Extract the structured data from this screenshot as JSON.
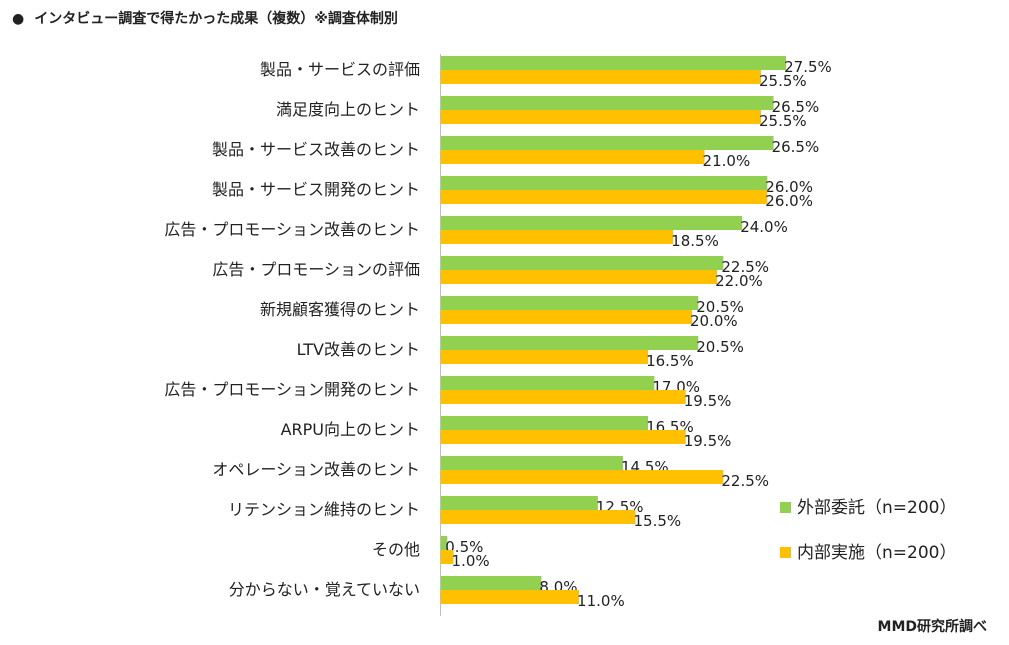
{
  "title": {
    "bullet": "●",
    "text": "インタビュー調査で得たかった成果（複数）※調査体制別"
  },
  "source": "MMD研究所調べ",
  "legend": [
    {
      "name": "外部委託（n=200）",
      "color": "#92d050"
    },
    {
      "name": "内部実施（n=200）",
      "color": "#ffc000"
    }
  ],
  "chart_data": {
    "type": "bar",
    "orientation": "horizontal",
    "categories": [
      "製品・サービスの評価",
      "満足度向上のヒント",
      "製品・サービス改善のヒント",
      "製品・サービス開発のヒント",
      "広告・プロモーション改善のヒント",
      "広告・プロモーションの評価",
      "新規顧客獲得のヒント",
      "LTV改善のヒント",
      "広告・プロモーション開発のヒント",
      "ARPU向上のヒント",
      "オペレーション改善のヒント",
      "リテンション維持のヒント",
      "その他",
      "分からない・覚えていない"
    ],
    "series": [
      {
        "name": "外部委託（n=200）",
        "color": "#92d050",
        "values": [
          27.5,
          26.5,
          26.5,
          26.0,
          24.0,
          22.5,
          20.5,
          20.5,
          17.0,
          16.5,
          14.5,
          12.5,
          0.5,
          8.0
        ],
        "labels": [
          "27.5%",
          "26.5%",
          "26.5%",
          "26.0%",
          "24.0%",
          "22.5%",
          "20.5%",
          "20.5%",
          "17.0%",
          "16.5%",
          "14.5%",
          "12.5%",
          "0.5%",
          "8.0%"
        ]
      },
      {
        "name": "内部実施（n=200）",
        "color": "#ffc000",
        "values": [
          25.5,
          25.5,
          21.0,
          26.0,
          18.5,
          22.0,
          20.0,
          16.5,
          19.5,
          19.5,
          22.5,
          15.5,
          1.0,
          11.0
        ],
        "labels": [
          "25.5%",
          "25.5%",
          "21.0%",
          "26.0%",
          "18.5%",
          "22.0%",
          "20.0%",
          "16.5%",
          "19.5%",
          "19.5%",
          "22.5%",
          "15.5%",
          "1.0%",
          "11.0%"
        ]
      }
    ],
    "xlim": [
      0,
      30
    ],
    "unit": "%",
    "legend_position": "bottom-right",
    "grid": false
  }
}
